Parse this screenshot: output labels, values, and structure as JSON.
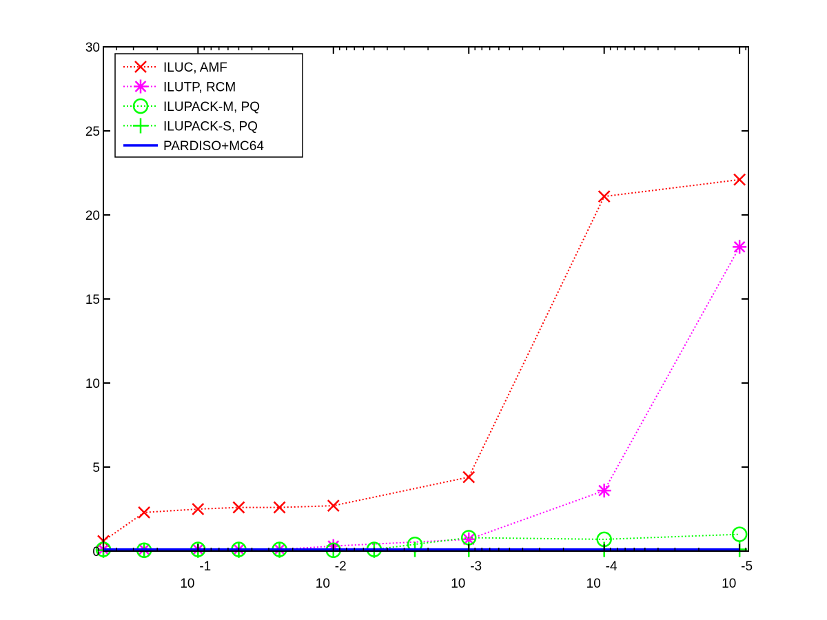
{
  "chart_data": {
    "type": "line",
    "title": "",
    "xlabel": "",
    "ylabel": "",
    "x_scale": "log-reversed",
    "x_range": [
      0.5,
      8.6e-06
    ],
    "ylim": [
      0,
      30
    ],
    "grid": false,
    "legend_position": "top-left",
    "y_ticks": [
      0,
      5,
      10,
      15,
      20,
      25,
      30
    ],
    "y_tick_labels": [
      "0",
      "5",
      "10",
      "15",
      "20",
      "25",
      "30"
    ],
    "x_ticks": [
      {
        "value": 0.1,
        "base": "10",
        "exp": "-1"
      },
      {
        "value": 0.01,
        "base": "10",
        "exp": "-2"
      },
      {
        "value": 0.001,
        "base": "10",
        "exp": "-3"
      },
      {
        "value": 0.0001,
        "base": "10",
        "exp": "-4"
      },
      {
        "value": 1e-05,
        "base": "10",
        "exp": "-5"
      }
    ],
    "series": [
      {
        "name": "ILUC, AMF",
        "color": "#ff0000",
        "marker": "x",
        "line": "dotted",
        "points": [
          [
            0.5,
            0.6
          ],
          [
            0.25,
            2.3
          ],
          [
            0.1,
            2.5
          ],
          [
            0.05,
            2.6
          ],
          [
            0.025,
            2.6
          ],
          [
            0.01,
            2.7
          ],
          [
            0.001,
            4.4
          ],
          [
            0.0001,
            21.1
          ],
          [
            1e-05,
            22.1
          ]
        ]
      },
      {
        "name": "ILUTP, RCM",
        "color": "#ff00ff",
        "marker": "star",
        "line": "dotted",
        "points": [
          [
            0.5,
            0.1
          ],
          [
            0.25,
            0.1
          ],
          [
            0.1,
            0.1
          ],
          [
            0.05,
            0.1
          ],
          [
            0.025,
            0.1
          ],
          [
            0.01,
            0.3
          ],
          [
            0.001,
            0.7
          ],
          [
            0.0001,
            3.6
          ],
          [
            1e-05,
            18.1
          ]
        ]
      },
      {
        "name": "ILUPACK-M, PQ",
        "color": "#00ff00",
        "marker": "circle",
        "line": "dotted",
        "points": [
          [
            0.5,
            0.1
          ],
          [
            0.25,
            0.05
          ],
          [
            0.1,
            0.1
          ],
          [
            0.05,
            0.1
          ],
          [
            0.025,
            0.1
          ],
          [
            0.01,
            0.05
          ],
          [
            0.005,
            0.1
          ],
          [
            0.0025,
            0.4
          ],
          [
            0.001,
            0.8
          ],
          [
            0.0001,
            0.7
          ],
          [
            1e-05,
            1.0
          ]
        ]
      },
      {
        "name": "ILUPACK-S, PQ",
        "color": "#00ff00",
        "marker": "plus",
        "line": "dotted",
        "points": [
          [
            0.5,
            0.05
          ],
          [
            0.25,
            0.05
          ],
          [
            0.1,
            0.05
          ],
          [
            0.05,
            0.05
          ],
          [
            0.025,
            0.05
          ],
          [
            0.01,
            0.05
          ],
          [
            0.005,
            0.05
          ],
          [
            0.0025,
            0.1
          ],
          [
            0.001,
            0.1
          ],
          [
            0.0001,
            0.1
          ],
          [
            1e-05,
            0.1
          ]
        ]
      },
      {
        "name": "PARDISO+MC64",
        "color": "#0000ff",
        "marker": "none",
        "line": "solid",
        "points": [
          [
            0.5,
            0.1
          ],
          [
            1e-05,
            0.1
          ]
        ]
      }
    ]
  }
}
